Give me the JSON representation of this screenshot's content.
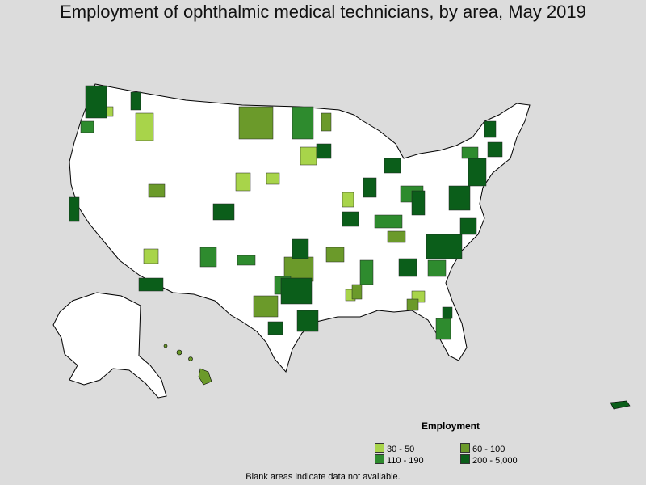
{
  "title": "Employment of ophthalmic medical technicians, by area, May 2019",
  "legend": {
    "title": "Employment",
    "items": [
      {
        "label": "30 - 50",
        "color": "#a8d44a"
      },
      {
        "label": "60 - 100",
        "color": "#6b9a2a"
      },
      {
        "label": "110 - 190",
        "color": "#2e8b2e"
      },
      {
        "label": "200 - 5,000",
        "color": "#0b5e1a"
      }
    ]
  },
  "footnote": "Blank areas indicate data not available.",
  "colors": {
    "background": "#dcdcdc",
    "land": "#ffffff",
    "border": "#000000"
  }
}
